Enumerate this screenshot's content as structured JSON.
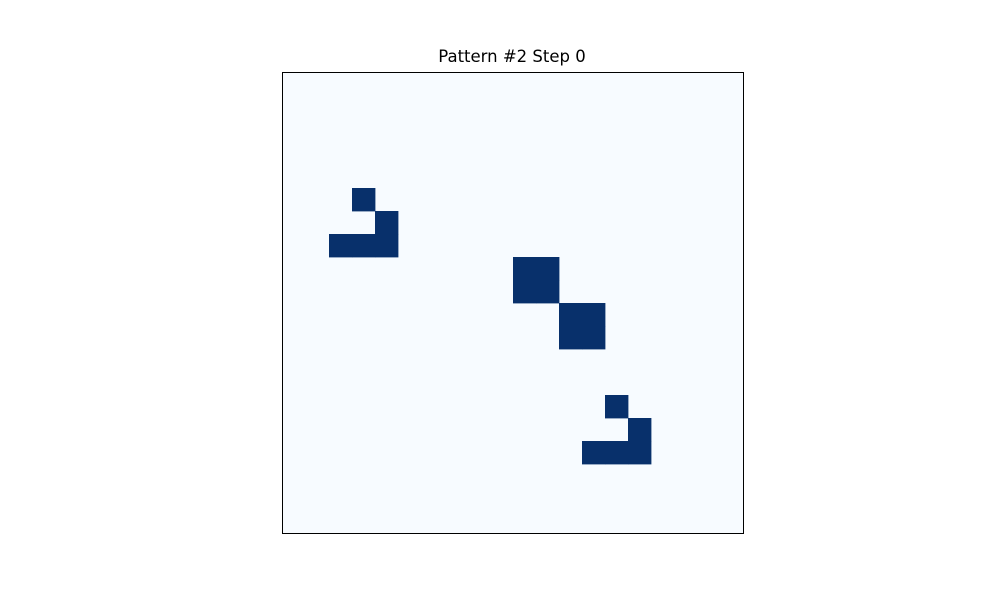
{
  "chart_data": {
    "type": "heatmap",
    "title": "Pattern #2 Step 0",
    "xlabel": "",
    "ylabel": "",
    "grid": false,
    "axes_ticks": false,
    "colormap": "Blues",
    "colors": {
      "dead": "#f7fbff",
      "alive": "#08306b",
      "border": "#000000"
    },
    "rows": 20,
    "cols": 20,
    "values_legend": {
      "0": "dead",
      "1": "alive"
    },
    "alive_cells": [
      [
        5,
        3
      ],
      [
        6,
        4
      ],
      [
        7,
        2
      ],
      [
        7,
        3
      ],
      [
        7,
        4
      ],
      [
        8,
        10
      ],
      [
        8,
        11
      ],
      [
        9,
        10
      ],
      [
        9,
        11
      ],
      [
        10,
        12
      ],
      [
        10,
        13
      ],
      [
        11,
        12
      ],
      [
        11,
        13
      ],
      [
        14,
        14
      ],
      [
        15,
        15
      ],
      [
        16,
        13
      ],
      [
        16,
        14
      ],
      [
        16,
        15
      ]
    ]
  }
}
